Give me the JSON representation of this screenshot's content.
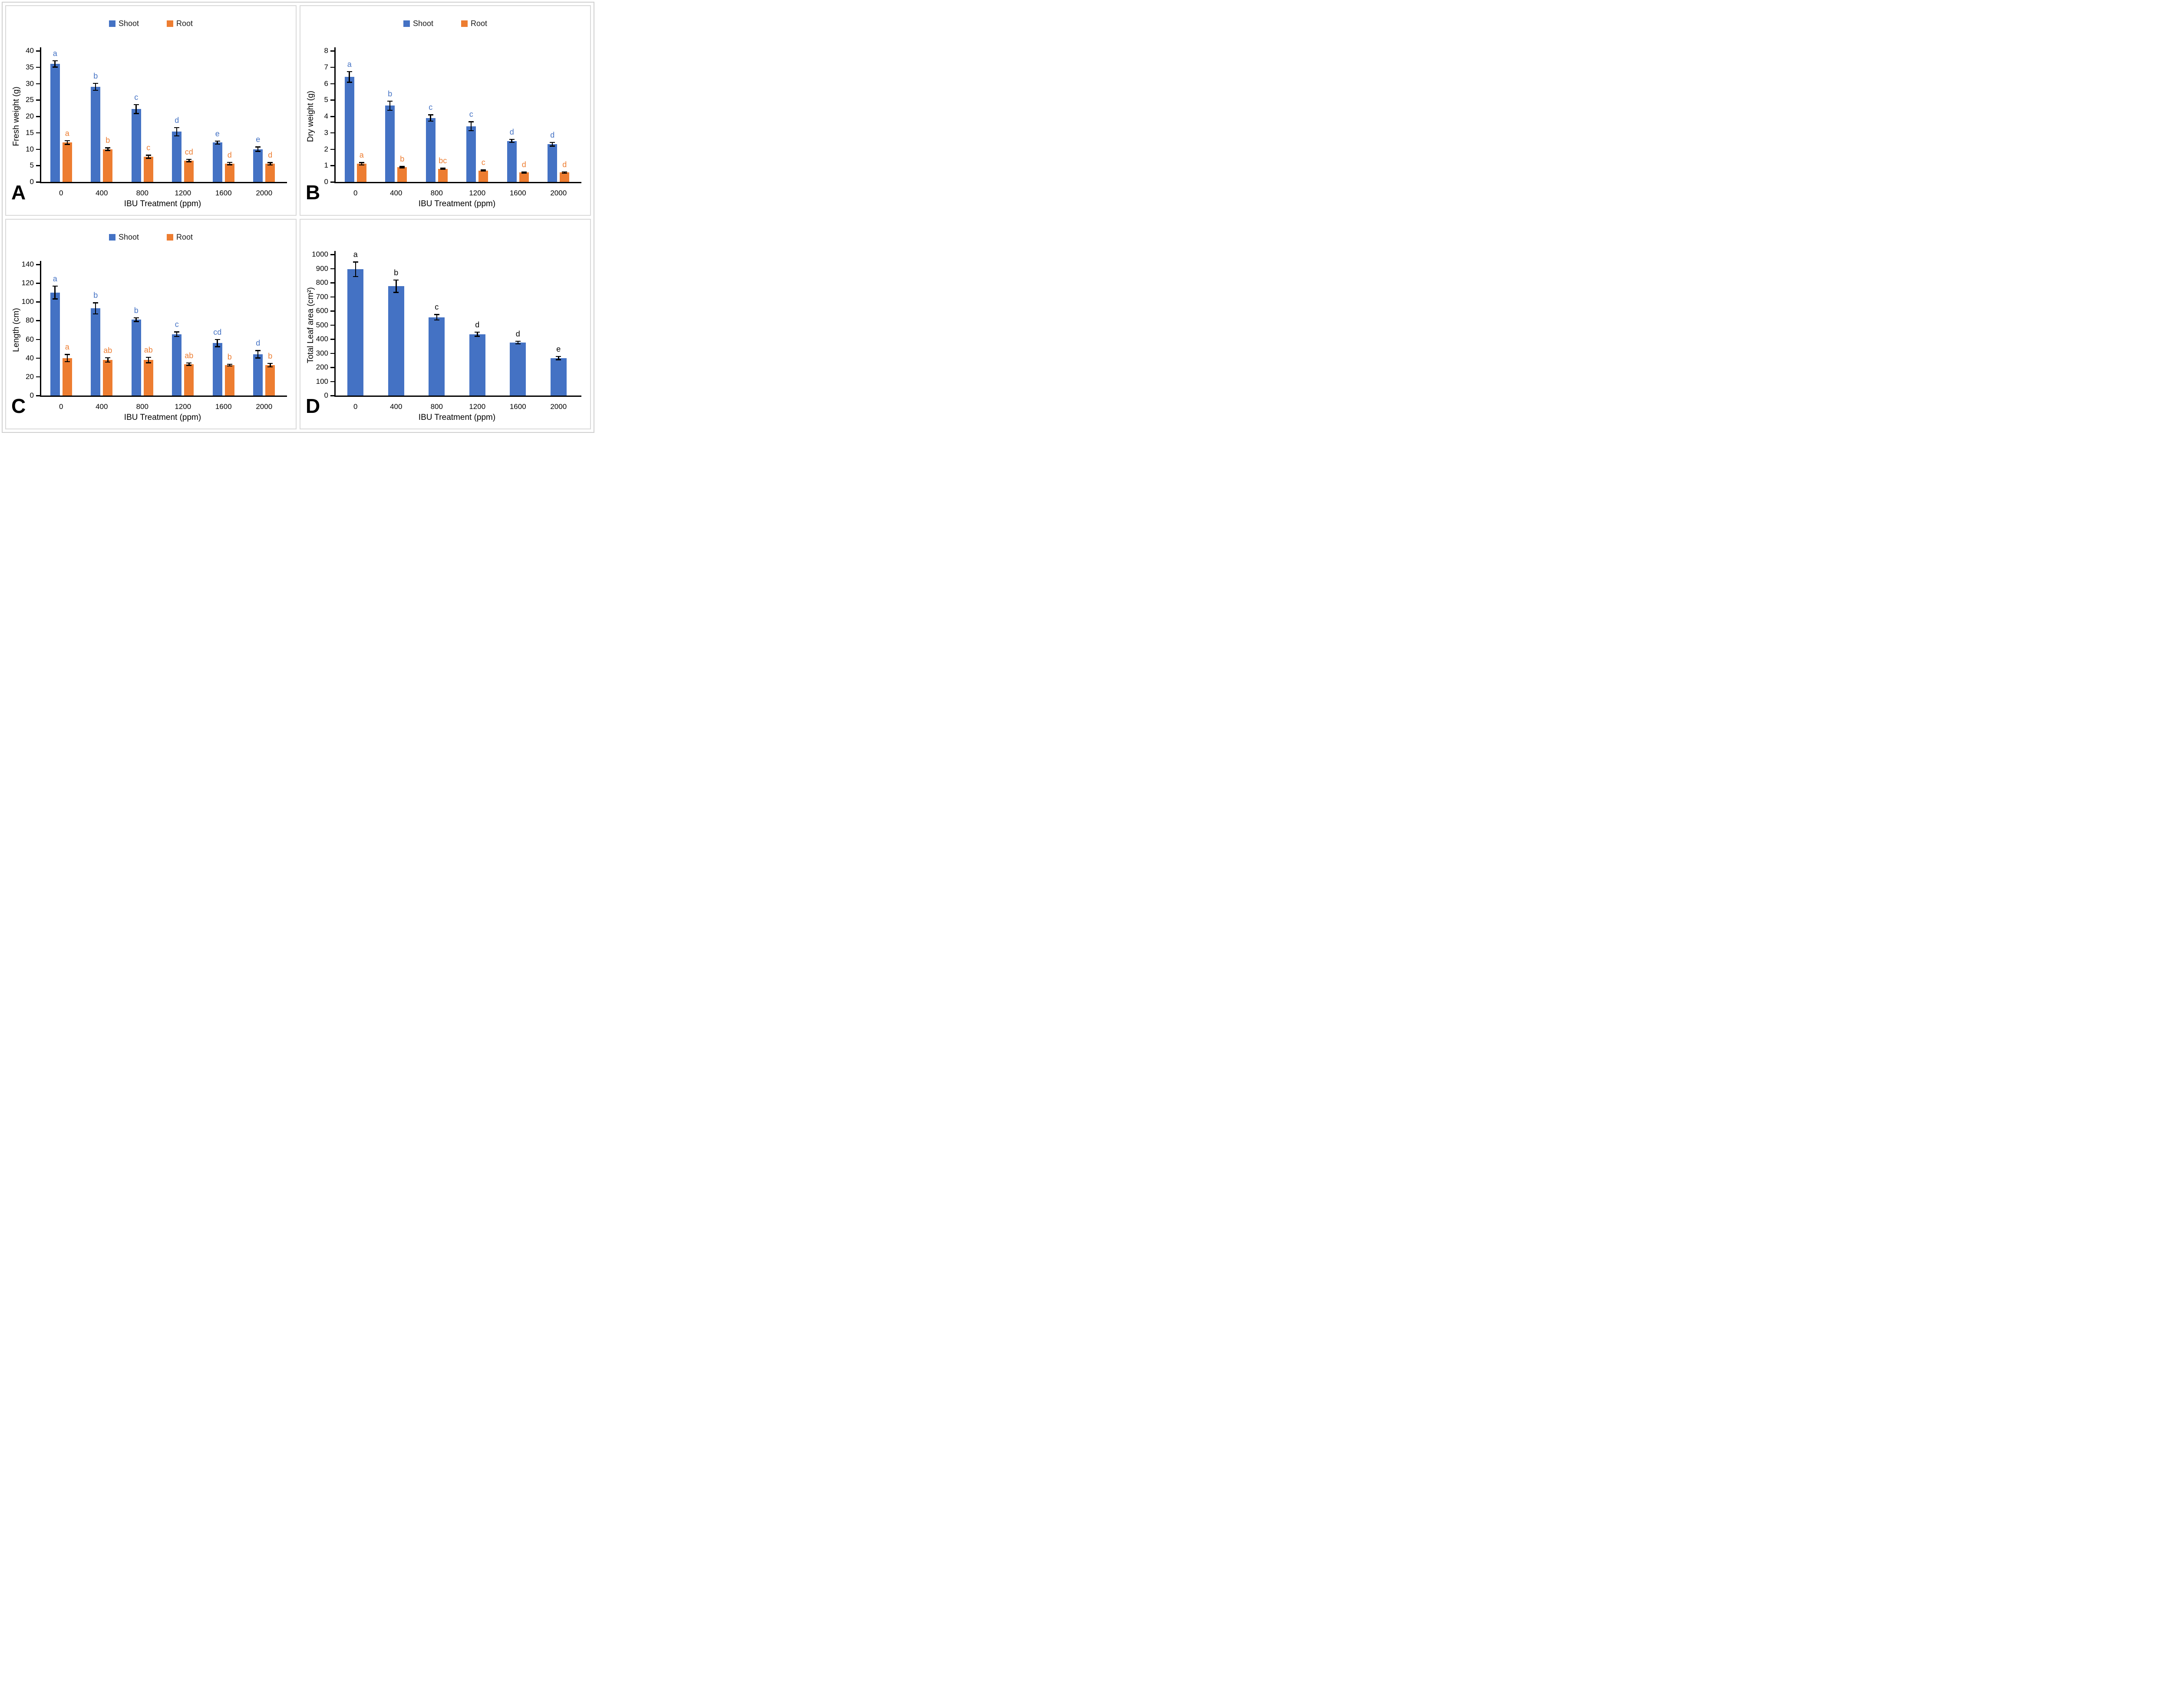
{
  "figure": {
    "background": "#ffffff",
    "panel_border_color": "#d9d9d9",
    "outer_border_color": "#cfcfcf",
    "panel_labels": [
      "A",
      "B",
      "C",
      "D"
    ]
  },
  "colors": {
    "shoot": "#4472C4",
    "root": "#ED7D31",
    "axis": "#000000",
    "error_bar": "#000000",
    "text": "#000000"
  },
  "legend": {
    "shoot_label": "Shoot",
    "root_label": "Root"
  },
  "chart_data": [
    {
      "type": "bar",
      "panel_label": "A",
      "title": "",
      "ylabel": "Fresh weight (g)",
      "xlabel": "IBU Treatment (ppm)",
      "ylim": [
        0,
        40
      ],
      "ytick_step": 5,
      "grid": false,
      "legend_position": "top-center",
      "categories": [
        "0",
        "400",
        "800",
        "1200",
        "1600",
        "2000"
      ],
      "series": [
        {
          "name": "Shoot",
          "color": "#4472C4",
          "letter_color": "#4472C4",
          "values": [
            36,
            29,
            22.2,
            15.3,
            12,
            10
          ],
          "errors": [
            1,
            1.1,
            1.4,
            1.3,
            0.5,
            0.7
          ],
          "letters": [
            "a",
            "b",
            "c",
            "d",
            "e",
            "e"
          ]
        },
        {
          "name": "Root",
          "color": "#ED7D31",
          "letter_color": "#ED7D31",
          "values": [
            12,
            10,
            7.7,
            6.5,
            5.6,
            5.5
          ],
          "errors": [
            0.6,
            0.4,
            0.5,
            0.4,
            0.4,
            0.4
          ],
          "letters": [
            "a",
            "b",
            "c",
            "cd",
            "d",
            "d"
          ]
        }
      ]
    },
    {
      "type": "bar",
      "panel_label": "B",
      "title": "",
      "ylabel": "Dry weight (g)",
      "xlabel": "IBU Treatment (ppm)",
      "ylim": [
        0,
        8
      ],
      "ytick_step": 1,
      "grid": false,
      "legend_position": "top-center",
      "categories": [
        "0",
        "400",
        "800",
        "1200",
        "1600",
        "2000"
      ],
      "series": [
        {
          "name": "Shoot",
          "color": "#4472C4",
          "letter_color": "#4472C4",
          "values": [
            6.4,
            4.65,
            3.9,
            3.4,
            2.5,
            2.3
          ],
          "errors": [
            0.33,
            0.28,
            0.2,
            0.28,
            0.1,
            0.12
          ],
          "letters": [
            "a",
            "b",
            "c",
            "c",
            "d",
            "d"
          ]
        },
        {
          "name": "Root",
          "color": "#ED7D31",
          "letter_color": "#ED7D31",
          "values": [
            1.1,
            0.9,
            0.8,
            0.7,
            0.58,
            0.57
          ],
          "errors": [
            0.08,
            0.05,
            0.04,
            0.03,
            0.04,
            0.05
          ],
          "letters": [
            "a",
            "b",
            "bc",
            "c",
            "d",
            "d"
          ]
        }
      ]
    },
    {
      "type": "bar",
      "panel_label": "C",
      "title": "",
      "ylabel": "Length (cm)",
      "xlabel": "IBU Treatment (ppm)",
      "ylim": [
        0,
        140
      ],
      "ytick_step": 20,
      "grid": false,
      "legend_position": "top-center",
      "categories": [
        "0",
        "400",
        "800",
        "1200",
        "1600",
        "2000"
      ],
      "series": [
        {
          "name": "Shoot",
          "color": "#4472C4",
          "letter_color": "#4472C4",
          "values": [
            110,
            93,
            81,
            65.5,
            56,
            44
          ],
          "errors": [
            7,
            6,
            2,
            2.5,
            4,
            4
          ],
          "letters": [
            "a",
            "b",
            "b",
            "c",
            "cd",
            "d"
          ]
        },
        {
          "name": "Root",
          "color": "#ED7D31",
          "letter_color": "#ED7D31",
          "values": [
            40,
            38,
            38,
            33.5,
            32.5,
            32.5
          ],
          "errors": [
            4,
            2.5,
            3,
            1.5,
            1,
            2
          ],
          "letters": [
            "a",
            "ab",
            "ab",
            "ab",
            "b",
            "b"
          ]
        }
      ]
    },
    {
      "type": "bar",
      "panel_label": "D",
      "title": "",
      "ylabel": "Total Leaf area (cm²)",
      "xlabel": "IBU Treatment (ppm)",
      "ylim": [
        0,
        1000
      ],
      "ytick_step": 100,
      "grid": false,
      "legend_position": "none",
      "categories": [
        "0",
        "400",
        "800",
        "1200",
        "1600",
        "2000"
      ],
      "series": [
        {
          "name": "Total Leaf area",
          "color": "#4472C4",
          "letter_color": "#000000",
          "values": [
            895,
            775,
            555,
            435,
            375,
            265
          ],
          "errors": [
            52,
            45,
            20,
            15,
            10,
            12
          ],
          "letters": [
            "a",
            "b",
            "c",
            "d",
            "d",
            "e"
          ]
        }
      ]
    }
  ]
}
